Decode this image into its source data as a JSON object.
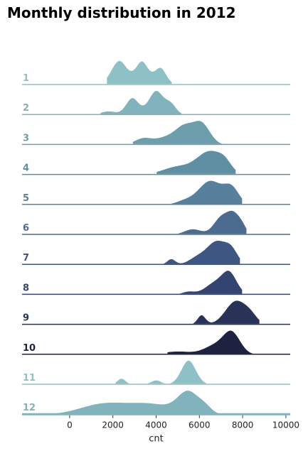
{
  "title": "Monthly distribution in 2012",
  "chart_data": {
    "type": "ridgeline",
    "title": "Monthly distribution in 2012",
    "xlabel": "cnt",
    "ylabel": "",
    "xlim": [
      -2200,
      10200
    ],
    "xticks": [
      0,
      2000,
      4000,
      6000,
      8000,
      10000
    ],
    "xtick_labels": [
      "0",
      "2000",
      "4000",
      "6000",
      "8000",
      "10000"
    ],
    "grid": false,
    "series": [
      {
        "name": "1",
        "color": "#8dc1c6",
        "peaks": [
          [
            2300,
            380,
            1.0
          ],
          [
            3350,
            300,
            0.95
          ],
          [
            4200,
            280,
            0.7
          ]
        ],
        "range": [
          1700,
          4750
        ]
      },
      {
        "name": "2",
        "color": "#80b3bb",
        "peaks": [
          [
            1800,
            350,
            0.15
          ],
          [
            2900,
            300,
            0.7
          ],
          [
            4000,
            350,
            1.0
          ],
          [
            4700,
            250,
            0.4
          ]
        ],
        "range": [
          1400,
          5200
        ]
      },
      {
        "name": "3",
        "color": "#6c9eab",
        "peaks": [
          [
            3400,
            400,
            0.3
          ],
          [
            4500,
            500,
            0.35
          ],
          [
            5300,
            400,
            0.75
          ],
          [
            6100,
            400,
            1.0
          ],
          [
            8100,
            150,
            0.05
          ]
        ],
        "range": [
          2900,
          8400
        ]
      },
      {
        "name": "4",
        "color": "#5f8fa3",
        "peaks": [
          [
            5000,
            700,
            0.35
          ],
          [
            6500,
            600,
            1.0
          ],
          [
            7200,
            300,
            0.3
          ]
        ],
        "range": [
          4000,
          7700
        ]
      },
      {
        "name": "5",
        "color": "#56809c",
        "peaks": [
          [
            5300,
            400,
            0.15
          ],
          [
            6500,
            550,
            1.0
          ],
          [
            7500,
            350,
            0.65
          ]
        ],
        "range": [
          4300,
          8000
        ]
      },
      {
        "name": "6",
        "color": "#4b6c8e",
        "peaks": [
          [
            5700,
            400,
            0.3
          ],
          [
            7000,
            350,
            0.9
          ],
          [
            7600,
            300,
            1.0
          ],
          [
            8000,
            200,
            0.3
          ]
        ],
        "range": [
          4800,
          8200
        ]
      },
      {
        "name": "7",
        "color": "#3e5682",
        "peaks": [
          [
            4700,
            200,
            0.25
          ],
          [
            5900,
            400,
            0.3
          ],
          [
            6800,
            450,
            1.0
          ],
          [
            7500,
            300,
            0.55
          ]
        ],
        "range": [
          4300,
          7900
        ]
      },
      {
        "name": "8",
        "color": "#344470",
        "peaks": [
          [
            5500,
            300,
            0.15
          ],
          [
            6700,
            450,
            0.55
          ],
          [
            7400,
            350,
            1.0
          ]
        ],
        "range": [
          4500,
          8000
        ]
      },
      {
        "name": "9",
        "color": "#283357",
        "peaks": [
          [
            6100,
            200,
            0.4
          ],
          [
            7700,
            500,
            1.0
          ],
          [
            8400,
            300,
            0.25
          ]
        ],
        "range": [
          5600,
          8800
        ]
      },
      {
        "name": "10",
        "color": "#1e2240",
        "peaks": [
          [
            5000,
            700,
            0.15
          ],
          [
            6700,
            500,
            0.4
          ],
          [
            7500,
            400,
            1.0
          ]
        ],
        "range": [
          4500,
          8600
        ]
      },
      {
        "name": "11",
        "color": "#8dc1c6",
        "peaks": [
          [
            2400,
            200,
            0.25
          ],
          [
            4000,
            250,
            0.18
          ],
          [
            5500,
            350,
            1.0
          ]
        ],
        "range": [
          2100,
          6900
        ]
      },
      {
        "name": "12",
        "color": "#80b3bb",
        "peaks": [
          [
            1600,
            1100,
            0.5
          ],
          [
            3800,
            1000,
            0.45
          ],
          [
            5500,
            500,
            1.0
          ],
          [
            6300,
            300,
            0.25
          ]
        ],
        "range": [
          -2200,
          10200
        ]
      }
    ]
  }
}
